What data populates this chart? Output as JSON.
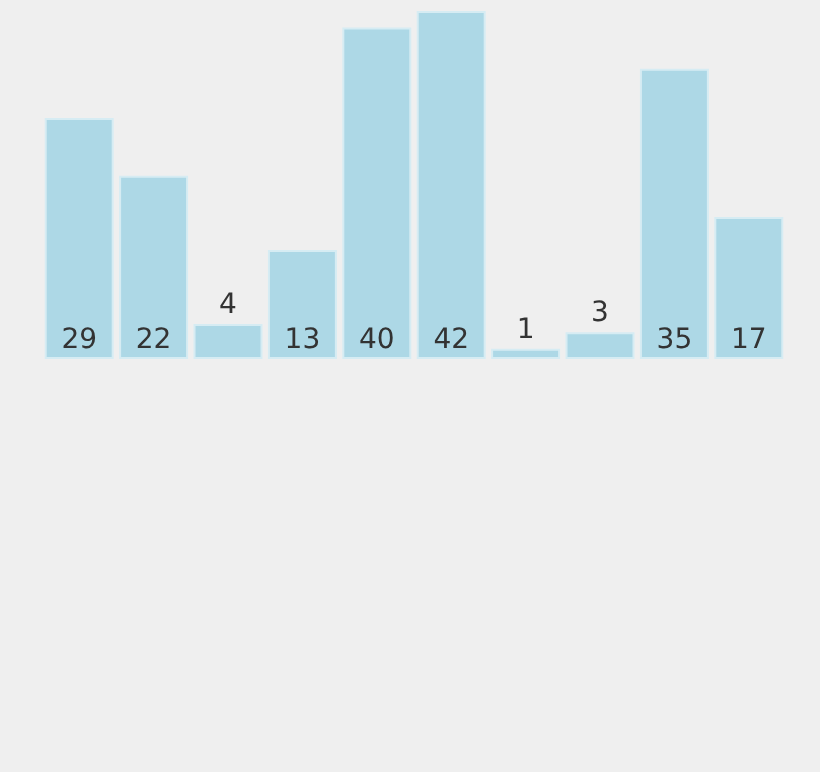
{
  "chart_data": {
    "type": "bar",
    "categories": [
      null,
      null,
      null,
      null,
      null,
      null,
      null,
      null,
      null,
      null
    ],
    "values": [
      29,
      22,
      4,
      13,
      40,
      42,
      1,
      3,
      35,
      17
    ],
    "color": "#add8e6",
    "data_labels": true,
    "tick_labels": false
  }
}
